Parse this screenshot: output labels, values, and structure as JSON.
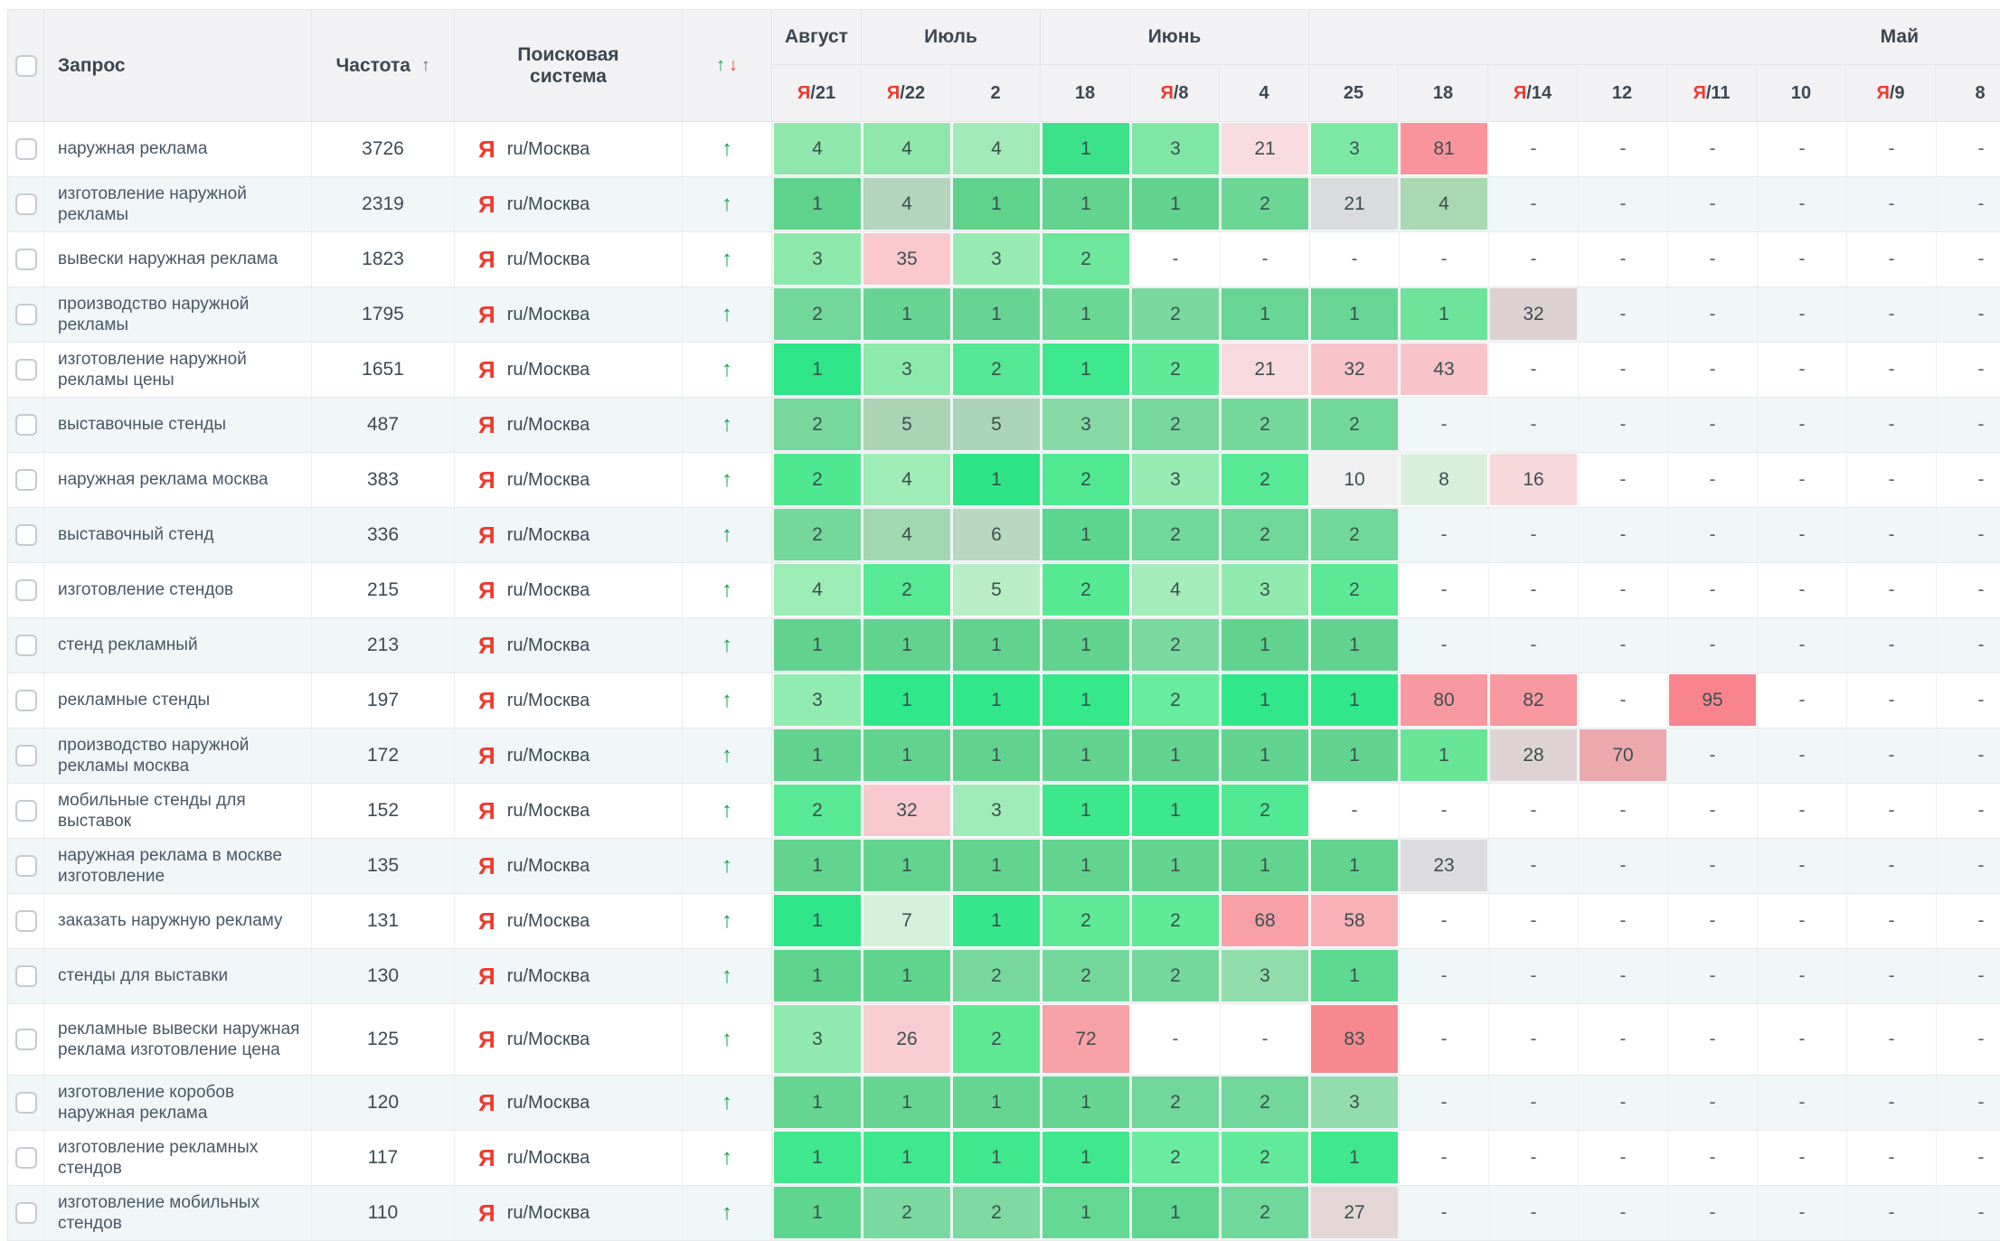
{
  "header": {
    "query_label": "Запрос",
    "frequency_label": "Частота",
    "frequency_sort_icon": "↑",
    "search_engine_label": "Поисковая система",
    "dynamics_up_icon": "↑",
    "dynamics_down_icon": "↓",
    "months": [
      {
        "label": "Август",
        "cols": 1
      },
      {
        "label": "Июль",
        "cols": 2
      },
      {
        "label": "Июнь",
        "cols": 3
      },
      {
        "label": "Май",
        "cols": 8
      }
    ],
    "dates": [
      {
        "ya": true,
        "day": "21"
      },
      {
        "ya": true,
        "day": "22"
      },
      {
        "ya": false,
        "day": "2"
      },
      {
        "ya": false,
        "day": "18"
      },
      {
        "ya": true,
        "day": "8"
      },
      {
        "ya": false,
        "day": "4"
      },
      {
        "ya": false,
        "day": "25"
      },
      {
        "ya": false,
        "day": "18"
      },
      {
        "ya": true,
        "day": "14"
      },
      {
        "ya": false,
        "day": "12"
      },
      {
        "ya": true,
        "day": "11"
      },
      {
        "ya": false,
        "day": "10"
      },
      {
        "ya": true,
        "day": "9"
      },
      {
        "ya": false,
        "day": "8"
      }
    ],
    "ya_prefix": "Я",
    "date_separator": "/"
  },
  "search_engine": {
    "icon": "Я",
    "region": "ru/Москва"
  },
  "row_trend_icon": "↑",
  "colors": {
    "trend_green": "#10a552",
    "dynamics_red": "#ef4136",
    "yandex_red": "#f0392e",
    "stripe_row_bg": "#f1f6f9",
    "header_bg": "#f2f2f4"
  },
  "rows": [
    {
      "query": "наружная реклама",
      "frequency": "3726",
      "positions": [
        {
          "v": "4",
          "c": "#8fe7ab"
        },
        {
          "v": "4",
          "c": "#8fe7ab"
        },
        {
          "v": "4",
          "c": "#a2eab7"
        },
        {
          "v": "1",
          "c": "#3ce289"
        },
        {
          "v": "3",
          "c": "#80e6a5"
        },
        {
          "v": "21",
          "c": "#f8dcdf"
        },
        {
          "v": "3",
          "c": "#7de7a4"
        },
        {
          "v": "81",
          "c": "#f9949c"
        },
        {
          "v": "-"
        },
        {
          "v": "-"
        },
        {
          "v": "-"
        },
        {
          "v": "-"
        },
        {
          "v": "-"
        },
        {
          "v": "-"
        }
      ]
    },
    {
      "query": "изготовление наружной рекламы",
      "frequency": "2319",
      "positions": [
        {
          "v": "1",
          "c": "#5fd28b"
        },
        {
          "v": "4",
          "c": "#b3d5bc"
        },
        {
          "v": "1",
          "c": "#5fd28b"
        },
        {
          "v": "1",
          "c": "#64d38f"
        },
        {
          "v": "1",
          "c": "#62d38e"
        },
        {
          "v": "2",
          "c": "#6cd695"
        },
        {
          "v": "21",
          "c": "#d9dbdd"
        },
        {
          "v": "4",
          "c": "#a9d8b2"
        },
        {
          "v": "-"
        },
        {
          "v": "-"
        },
        {
          "v": "-"
        },
        {
          "v": "-"
        },
        {
          "v": "-"
        },
        {
          "v": "-"
        }
      ]
    },
    {
      "query": "вывески наружная реклама",
      "frequency": "1823",
      "positions": [
        {
          "v": "3",
          "c": "#8ce9ab"
        },
        {
          "v": "35",
          "c": "#f8c8cd"
        },
        {
          "v": "3",
          "c": "#97eab2"
        },
        {
          "v": "2",
          "c": "#6ee79c"
        },
        {
          "v": "-"
        },
        {
          "v": "-"
        },
        {
          "v": "-"
        },
        {
          "v": "-"
        },
        {
          "v": "-"
        },
        {
          "v": "-"
        },
        {
          "v": "-"
        },
        {
          "v": "-"
        },
        {
          "v": "-"
        },
        {
          "v": "-"
        }
      ]
    },
    {
      "query": "производство наружной рекламы",
      "frequency": "1795",
      "positions": [
        {
          "v": "2",
          "c": "#72d79b"
        },
        {
          "v": "1",
          "c": "#67d493"
        },
        {
          "v": "1",
          "c": "#67d493"
        },
        {
          "v": "1",
          "c": "#6bd795"
        },
        {
          "v": "2",
          "c": "#78d89e"
        },
        {
          "v": "1",
          "c": "#68d594"
        },
        {
          "v": "1",
          "c": "#68d594"
        },
        {
          "v": "1",
          "c": "#6ee39a"
        },
        {
          "v": "32",
          "c": "#ddd0d1"
        },
        {
          "v": "-"
        },
        {
          "v": "-"
        },
        {
          "v": "-"
        },
        {
          "v": "-"
        },
        {
          "v": "-"
        }
      ]
    },
    {
      "query": "изготовление наружной рекламы цены",
      "frequency": "1651",
      "positions": [
        {
          "v": "1",
          "c": "#2ee687"
        },
        {
          "v": "3",
          "c": "#8deaad"
        },
        {
          "v": "2",
          "c": "#55e894"
        },
        {
          "v": "1",
          "c": "#3ee88c"
        },
        {
          "v": "2",
          "c": "#60ea98"
        },
        {
          "v": "21",
          "c": "#f8d9dd"
        },
        {
          "v": "32",
          "c": "#f8c4c9"
        },
        {
          "v": "43",
          "c": "#f8c4c9"
        },
        {
          "v": "-"
        },
        {
          "v": "-"
        },
        {
          "v": "-"
        },
        {
          "v": "-"
        },
        {
          "v": "-"
        },
        {
          "v": "-"
        }
      ]
    },
    {
      "query": "выставочные стенды",
      "frequency": "487",
      "positions": [
        {
          "v": "2",
          "c": "#77d89d"
        },
        {
          "v": "5",
          "c": "#abd4b5"
        },
        {
          "v": "5",
          "c": "#abd5b6"
        },
        {
          "v": "3",
          "c": "#86d8a5"
        },
        {
          "v": "2",
          "c": "#76d89c"
        },
        {
          "v": "2",
          "c": "#74d89b"
        },
        {
          "v": "2",
          "c": "#72d89a"
        },
        {
          "v": "-"
        },
        {
          "v": "-"
        },
        {
          "v": "-"
        },
        {
          "v": "-"
        },
        {
          "v": "-"
        },
        {
          "v": "-"
        },
        {
          "v": "-"
        }
      ]
    },
    {
      "query": "наружная реклама москва",
      "frequency": "383",
      "positions": [
        {
          "v": "2",
          "c": "#4fe891"
        },
        {
          "v": "4",
          "c": "#9fecb7"
        },
        {
          "v": "1",
          "c": "#2ee586"
        },
        {
          "v": "2",
          "c": "#50e891"
        },
        {
          "v": "3",
          "c": "#97ecb3"
        },
        {
          "v": "2",
          "c": "#57e994"
        },
        {
          "v": "10",
          "c": "#efefef"
        },
        {
          "v": "8",
          "c": "#daeedd"
        },
        {
          "v": "16",
          "c": "#f8d9db"
        },
        {
          "v": "-"
        },
        {
          "v": "-"
        },
        {
          "v": "-"
        },
        {
          "v": "-"
        },
        {
          "v": "-"
        }
      ]
    },
    {
      "query": "выставочный стенд",
      "frequency": "336",
      "positions": [
        {
          "v": "2",
          "c": "#74d89b"
        },
        {
          "v": "4",
          "c": "#a2d8b1"
        },
        {
          "v": "6",
          "c": "#bad7c2"
        },
        {
          "v": "1",
          "c": "#5cd58e"
        },
        {
          "v": "2",
          "c": "#70d899"
        },
        {
          "v": "2",
          "c": "#70d899"
        },
        {
          "v": "2",
          "c": "#70d899"
        },
        {
          "v": "-"
        },
        {
          "v": "-"
        },
        {
          "v": "-"
        },
        {
          "v": "-"
        },
        {
          "v": "-"
        },
        {
          "v": "-"
        },
        {
          "v": "-"
        }
      ]
    },
    {
      "query": "изготовление стендов",
      "frequency": "215",
      "positions": [
        {
          "v": "4",
          "c": "#9debb5"
        },
        {
          "v": "2",
          "c": "#57e993"
        },
        {
          "v": "5",
          "c": "#b9edc5"
        },
        {
          "v": "2",
          "c": "#55e992"
        },
        {
          "v": "4",
          "c": "#a4ecba"
        },
        {
          "v": "3",
          "c": "#90eaae"
        },
        {
          "v": "2",
          "c": "#5ce995"
        },
        {
          "v": "-"
        },
        {
          "v": "-"
        },
        {
          "v": "-"
        },
        {
          "v": "-"
        },
        {
          "v": "-"
        },
        {
          "v": "-"
        },
        {
          "v": "-"
        }
      ]
    },
    {
      "query": "стенд рекламный",
      "frequency": "213",
      "positions": [
        {
          "v": "1",
          "c": "#62d38e"
        },
        {
          "v": "1",
          "c": "#62d38e"
        },
        {
          "v": "1",
          "c": "#62d38e"
        },
        {
          "v": "1",
          "c": "#62d38e"
        },
        {
          "v": "2",
          "c": "#79d99f"
        },
        {
          "v": "1",
          "c": "#62d38e"
        },
        {
          "v": "1",
          "c": "#62d38e"
        },
        {
          "v": "-"
        },
        {
          "v": "-"
        },
        {
          "v": "-"
        },
        {
          "v": "-"
        },
        {
          "v": "-"
        },
        {
          "v": "-"
        },
        {
          "v": "-"
        }
      ]
    },
    {
      "query": "рекламные стенды",
      "frequency": "197",
      "positions": [
        {
          "v": "3",
          "c": "#90ecb1"
        },
        {
          "v": "1",
          "c": "#2ee889"
        },
        {
          "v": "1",
          "c": "#30e889"
        },
        {
          "v": "1",
          "c": "#35e88a"
        },
        {
          "v": "2",
          "c": "#68ec9e"
        },
        {
          "v": "1",
          "c": "#30e889"
        },
        {
          "v": "1",
          "c": "#30e889"
        },
        {
          "v": "80",
          "c": "#f898a0"
        },
        {
          "v": "82",
          "c": "#f898a0"
        },
        {
          "v": "-"
        },
        {
          "v": "95",
          "c": "#f8858e"
        },
        {
          "v": "-"
        },
        {
          "v": "-"
        },
        {
          "v": "-"
        }
      ]
    },
    {
      "query": "производство наружной рекламы москва",
      "frequency": "172",
      "positions": [
        {
          "v": "1",
          "c": "#62d38e"
        },
        {
          "v": "1",
          "c": "#62d38e"
        },
        {
          "v": "1",
          "c": "#62d38e"
        },
        {
          "v": "1",
          "c": "#62d38e"
        },
        {
          "v": "1",
          "c": "#62d38e"
        },
        {
          "v": "1",
          "c": "#62d38e"
        },
        {
          "v": "1",
          "c": "#62d38e"
        },
        {
          "v": "1",
          "c": "#69e597"
        },
        {
          "v": "28",
          "c": "#ded3d4"
        },
        {
          "v": "70",
          "c": "#eba9ae"
        },
        {
          "v": "-"
        },
        {
          "v": "-"
        },
        {
          "v": "-"
        },
        {
          "v": "-"
        }
      ]
    },
    {
      "query": "мобильные стенды для выставок",
      "frequency": "152",
      "positions": [
        {
          "v": "2",
          "c": "#59e995"
        },
        {
          "v": "32",
          "c": "#f8c9ce"
        },
        {
          "v": "3",
          "c": "#a0ecb8"
        },
        {
          "v": "1",
          "c": "#3be88b"
        },
        {
          "v": "1",
          "c": "#3be88b"
        },
        {
          "v": "2",
          "c": "#50e992"
        },
        {
          "v": "-"
        },
        {
          "v": "-"
        },
        {
          "v": "-"
        },
        {
          "v": "-"
        },
        {
          "v": "-"
        },
        {
          "v": "-"
        },
        {
          "v": "-"
        },
        {
          "v": "-"
        }
      ]
    },
    {
      "query": "наружная реклама в москве изготовление",
      "frequency": "135",
      "positions": [
        {
          "v": "1",
          "c": "#62d48e"
        },
        {
          "v": "1",
          "c": "#62d48e"
        },
        {
          "v": "1",
          "c": "#62d48e"
        },
        {
          "v": "1",
          "c": "#62d48e"
        },
        {
          "v": "1",
          "c": "#62d48e"
        },
        {
          "v": "1",
          "c": "#62d48e"
        },
        {
          "v": "1",
          "c": "#62d48e"
        },
        {
          "v": "23",
          "c": "#dcdcdf"
        },
        {
          "v": "-"
        },
        {
          "v": "-"
        },
        {
          "v": "-"
        },
        {
          "v": "-"
        },
        {
          "v": "-"
        },
        {
          "v": "-"
        }
      ]
    },
    {
      "query": "заказать наружную рекламу",
      "frequency": "131",
      "positions": [
        {
          "v": "1",
          "c": "#2ee687"
        },
        {
          "v": "7",
          "c": "#d5f0db"
        },
        {
          "v": "1",
          "c": "#35e78a"
        },
        {
          "v": "2",
          "c": "#5fe996"
        },
        {
          "v": "2",
          "c": "#5deb97"
        },
        {
          "v": "68",
          "c": "#f8a0a6"
        },
        {
          "v": "58",
          "c": "#f8b1b6"
        },
        {
          "v": "-"
        },
        {
          "v": "-"
        },
        {
          "v": "-"
        },
        {
          "v": "-"
        },
        {
          "v": "-"
        },
        {
          "v": "-"
        },
        {
          "v": "-"
        }
      ]
    },
    {
      "query": "стенды для выставки",
      "frequency": "130",
      "positions": [
        {
          "v": "1",
          "c": "#5fd48d"
        },
        {
          "v": "1",
          "c": "#60d48d"
        },
        {
          "v": "2",
          "c": "#76d89d"
        },
        {
          "v": "2",
          "c": "#74d89c"
        },
        {
          "v": "2",
          "c": "#74d89c"
        },
        {
          "v": "3",
          "c": "#90dcab"
        },
        {
          "v": "1",
          "c": "#5ed990"
        },
        {
          "v": "-"
        },
        {
          "v": "-"
        },
        {
          "v": "-"
        },
        {
          "v": "-"
        },
        {
          "v": "-"
        },
        {
          "v": "-"
        },
        {
          "v": "-"
        }
      ]
    },
    {
      "query": "рекламные вывески наружная реклама изготовление цена",
      "frequency": "125",
      "tall": true,
      "positions": [
        {
          "v": "3",
          "c": "#90e9ae"
        },
        {
          "v": "26",
          "c": "#f8cdd1"
        },
        {
          "v": "2",
          "c": "#5ee894"
        },
        {
          "v": "72",
          "c": "#f8a1a6"
        },
        {
          "v": "-"
        },
        {
          "v": "-"
        },
        {
          "v": "83",
          "c": "#f8888f"
        },
        {
          "v": "-"
        },
        {
          "v": "-"
        },
        {
          "v": "-"
        },
        {
          "v": "-"
        },
        {
          "v": "-"
        },
        {
          "v": "-"
        },
        {
          "v": "-"
        }
      ]
    },
    {
      "query": "изготовление коробов наружная реклама",
      "frequency": "120",
      "positions": [
        {
          "v": "1",
          "c": "#66d592"
        },
        {
          "v": "1",
          "c": "#66d592"
        },
        {
          "v": "1",
          "c": "#66d592"
        },
        {
          "v": "1",
          "c": "#66d592"
        },
        {
          "v": "2",
          "c": "#72d79a"
        },
        {
          "v": "2",
          "c": "#72d79a"
        },
        {
          "v": "3",
          "c": "#92dcae"
        },
        {
          "v": "-"
        },
        {
          "v": "-"
        },
        {
          "v": "-"
        },
        {
          "v": "-"
        },
        {
          "v": "-"
        },
        {
          "v": "-"
        },
        {
          "v": "-"
        }
      ]
    },
    {
      "query": "изготовление рекламных стендов",
      "frequency": "117",
      "positions": [
        {
          "v": "1",
          "c": "#3fe88c"
        },
        {
          "v": "1",
          "c": "#3fe88c"
        },
        {
          "v": "1",
          "c": "#3fe88c"
        },
        {
          "v": "1",
          "c": "#3fe88c"
        },
        {
          "v": "2",
          "c": "#6aeca0"
        },
        {
          "v": "2",
          "c": "#62ea9a"
        },
        {
          "v": "1",
          "c": "#3fe88c"
        },
        {
          "v": "-"
        },
        {
          "v": "-"
        },
        {
          "v": "-"
        },
        {
          "v": "-"
        },
        {
          "v": "-"
        },
        {
          "v": "-"
        },
        {
          "v": "-"
        }
      ]
    },
    {
      "query": "изготовление мобильных стендов",
      "frequency": "110",
      "positions": [
        {
          "v": "1",
          "c": "#5fd68f"
        },
        {
          "v": "2",
          "c": "#79d9a0"
        },
        {
          "v": "2",
          "c": "#7ed9a2"
        },
        {
          "v": "1",
          "c": "#64d792"
        },
        {
          "v": "1",
          "c": "#60d690"
        },
        {
          "v": "2",
          "c": "#70d89a"
        },
        {
          "v": "27",
          "c": "#e4d6d4"
        },
        {
          "v": "-"
        },
        {
          "v": "-"
        },
        {
          "v": "-"
        },
        {
          "v": "-"
        },
        {
          "v": "-"
        },
        {
          "v": "-"
        },
        {
          "v": "-"
        }
      ]
    }
  ]
}
